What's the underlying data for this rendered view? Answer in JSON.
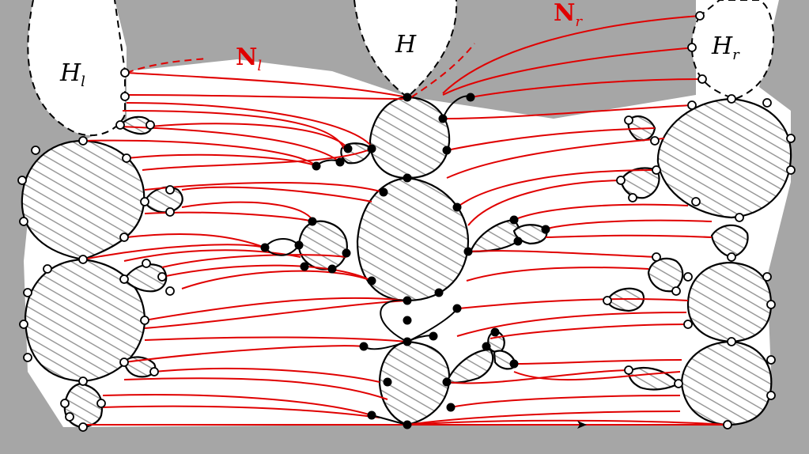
{
  "labels": {
    "hl": {
      "main": "H",
      "sub": "l"
    },
    "h": {
      "main": "H"
    },
    "hr": {
      "main": "H",
      "sub": "r"
    },
    "nl": {
      "main": "N",
      "sub": "l"
    },
    "nr": {
      "main": "N",
      "sub": "r"
    }
  },
  "colors": {
    "background": "#a6a6a6",
    "paths": "#e00000",
    "outline": "#000000",
    "hatch": "#9a9a9a"
  }
}
